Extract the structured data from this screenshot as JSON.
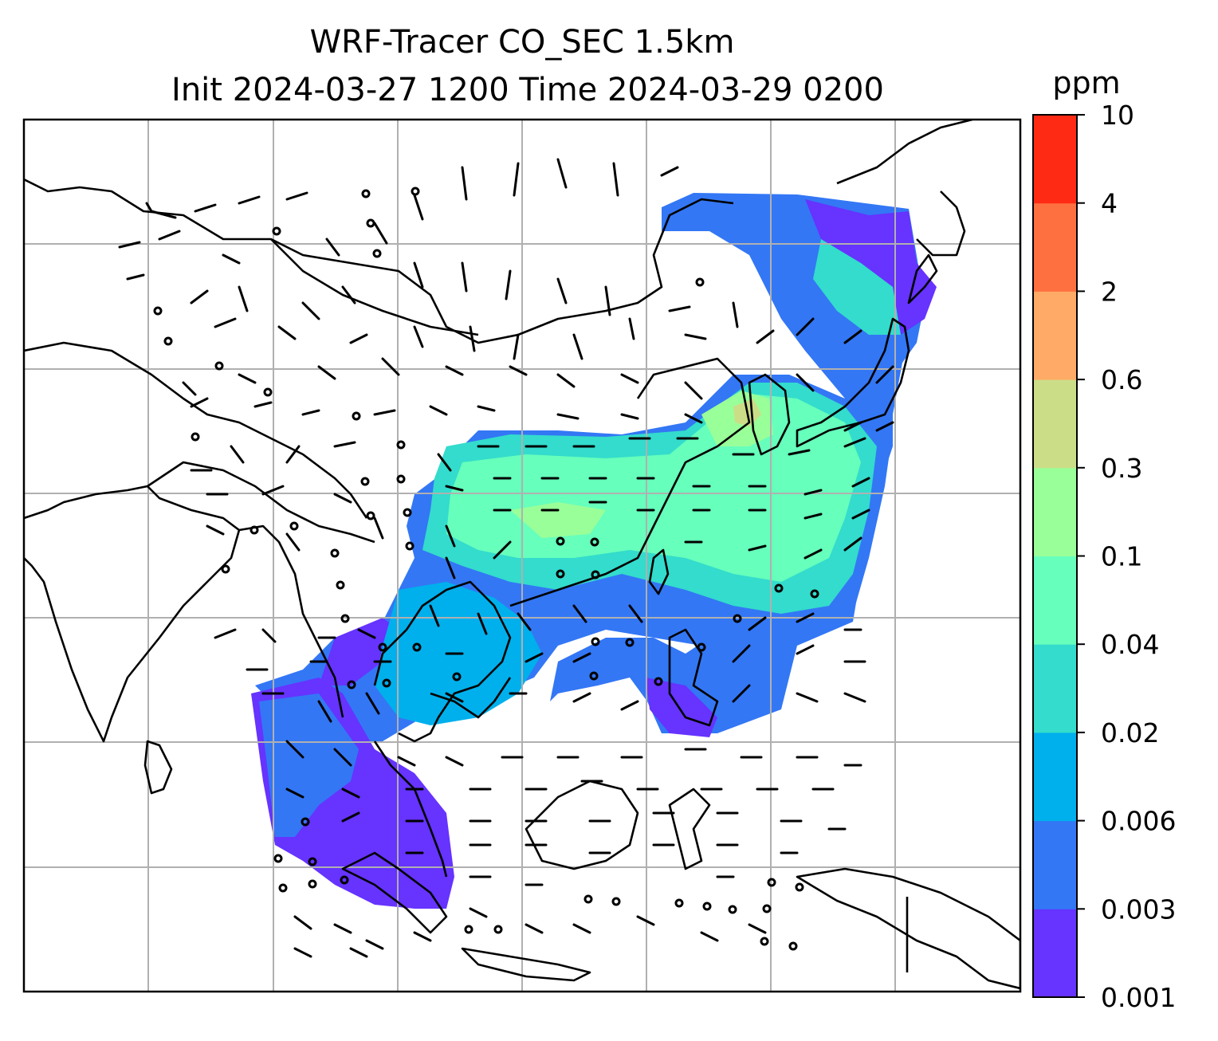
{
  "title": {
    "line1": "WRF-Tracer CO_SEC 1.5km",
    "line2": "Init 2024-03-27 1200 Time 2024-03-29 0200"
  },
  "colorbar": {
    "unit": "ppm",
    "levels": [
      "0.001",
      "0.003",
      "0.006",
      "0.02",
      "0.04",
      "0.1",
      "0.3",
      "0.6",
      "2",
      "4",
      "10"
    ],
    "colors": [
      "#6633ff",
      "#3377f5",
      "#00b0ec",
      "#33dccc",
      "#66ffbb",
      "#99ff99",
      "#ccdd88",
      "#ffaa66",
      "#ff7040",
      "#ff2a14"
    ]
  },
  "map": {
    "coastline_color": "#000000",
    "gridline_color": "#b0b0b0",
    "background": "#ffffff"
  }
}
